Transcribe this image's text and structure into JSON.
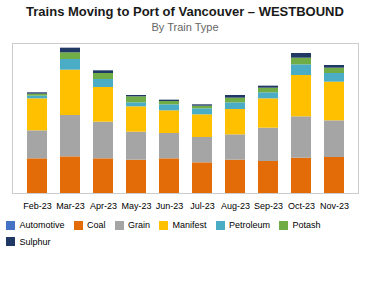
{
  "chart_data": {
    "type": "bar",
    "stacked": true,
    "title": "Trains Moving to Port of Vancouver – WESTBOUND",
    "subtitle": "By Train Type",
    "categories": [
      "Feb-23",
      "Mar-23",
      "Apr-23",
      "May-23",
      "Jun-23",
      "Jul-23",
      "Aug-23",
      "Sep-23",
      "Oct-23",
      "Nov-23"
    ],
    "series": [
      {
        "name": "Automotive",
        "color": "#4472c4",
        "values": [
          0,
          0,
          0,
          0,
          0,
          0,
          0,
          0,
          0,
          0
        ]
      },
      {
        "name": "Coal",
        "color": "#e36c09",
        "values": [
          52,
          55,
          52,
          50,
          52,
          46,
          50,
          48,
          53,
          54
        ]
      },
      {
        "name": "Grain",
        "color": "#a5a5a5",
        "values": [
          42,
          62,
          55,
          42,
          38,
          38,
          38,
          50,
          62,
          55
        ]
      },
      {
        "name": "Manifest",
        "color": "#ffc000",
        "values": [
          48,
          68,
          52,
          38,
          34,
          34,
          38,
          44,
          62,
          58
        ]
      },
      {
        "name": "Petroleum",
        "color": "#4bacc6",
        "values": [
          4,
          16,
          12,
          6,
          9,
          9,
          10,
          9,
          16,
          13
        ]
      },
      {
        "name": "Potash",
        "color": "#70ad47",
        "values": [
          3,
          10,
          9,
          9,
          5,
          4,
          7,
          7,
          10,
          8
        ]
      },
      {
        "name": "Sulphur",
        "color": "#1f3864",
        "values": [
          2,
          7,
          4,
          2,
          2,
          2,
          4,
          3,
          7,
          4
        ]
      }
    ],
    "ylim": [
      0,
      225
    ],
    "tick_labels": "x",
    "grid": false,
    "legend": "bottom"
  }
}
